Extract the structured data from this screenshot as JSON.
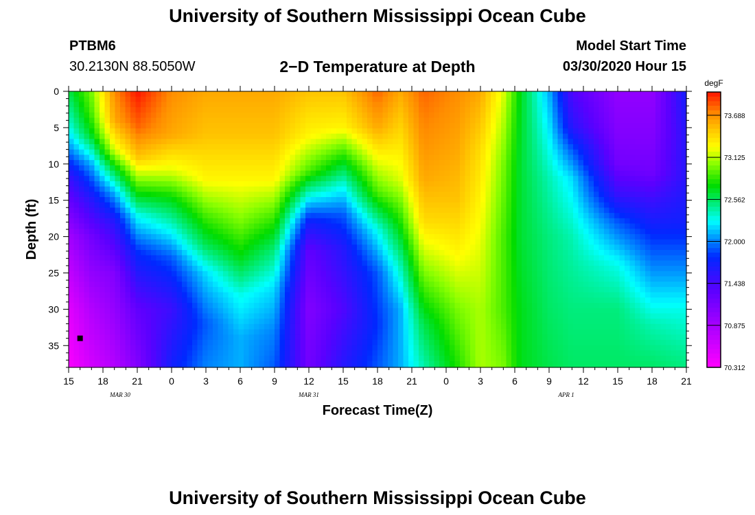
{
  "page": {
    "title": "University of Southern Mississippi Ocean Cube",
    "footer_title": "University of Southern Mississippi Ocean Cube",
    "station_id": "PTBM6",
    "station_coords": "30.2130N 88.5050W",
    "plot_title": "2−D Temperature at Depth",
    "model_start_label": "Model Start Time",
    "model_start_value": "03/30/2020 Hour 15"
  },
  "chart_data": {
    "type": "heatmap",
    "title": "2−D Temperature at Depth",
    "xlabel": "Forecast Time(Z)",
    "ylabel": "Depth (ft)",
    "x_range_hours": [
      0,
      54
    ],
    "ylim": [
      0,
      38
    ],
    "y_inverted": true,
    "y_ticks": [
      0,
      5,
      10,
      15,
      20,
      25,
      30,
      35
    ],
    "x_ticks": [
      {
        "h": 0,
        "label": "15"
      },
      {
        "h": 3,
        "label": "18"
      },
      {
        "h": 6,
        "label": "21"
      },
      {
        "h": 9,
        "label": "0"
      },
      {
        "h": 12,
        "label": "3"
      },
      {
        "h": 15,
        "label": "6"
      },
      {
        "h": 18,
        "label": "9"
      },
      {
        "h": 21,
        "label": "12"
      },
      {
        "h": 24,
        "label": "15"
      },
      {
        "h": 27,
        "label": "18"
      },
      {
        "h": 30,
        "label": "21"
      },
      {
        "h": 33,
        "label": "0"
      },
      {
        "h": 36,
        "label": "3"
      },
      {
        "h": 39,
        "label": "6"
      },
      {
        "h": 42,
        "label": "9"
      },
      {
        "h": 45,
        "label": "12"
      },
      {
        "h": 48,
        "label": "15"
      },
      {
        "h": 51,
        "label": "18"
      },
      {
        "h": 54,
        "label": "21"
      }
    ],
    "date_labels": [
      {
        "h": 4.5,
        "label": "MAR 30"
      },
      {
        "h": 21,
        "label": "MAR 31"
      },
      {
        "h": 43.5,
        "label": "APR 1"
      }
    ],
    "colorbar": {
      "unit": "degF",
      "min": 70.312,
      "max": 74.0,
      "ticks": [
        "73.688",
        "73.125",
        "72.562",
        "72.000",
        "71.438",
        "70.875",
        "70.312"
      ],
      "tick_values": [
        73.688,
        73.125,
        72.562,
        72.0,
        71.438,
        70.875,
        70.312
      ]
    },
    "marker": {
      "h": 1,
      "depth": 34
    },
    "grid": false,
    "temperature_field": {
      "units": "degF",
      "description": "Temperature (degF) versus forecast hour and depth (ft)",
      "profiles": [
        {
          "h": 0,
          "depths": [
            0,
            5,
            8,
            12,
            20,
            30,
            38
          ],
          "temps": [
            72.6,
            72.3,
            72.0,
            71.5,
            70.9,
            70.5,
            70.35
          ]
        },
        {
          "h": 2,
          "depths": [
            0,
            3,
            6,
            10,
            15,
            20,
            30,
            38
          ],
          "temps": [
            73.0,
            72.9,
            72.7,
            72.1,
            71.6,
            71.2,
            70.8,
            70.6
          ]
        },
        {
          "h": 4,
          "depths": [
            0,
            4,
            8,
            11,
            14,
            18,
            25,
            38
          ],
          "temps": [
            73.7,
            73.6,
            73.2,
            72.6,
            72.1,
            71.6,
            71.1,
            70.8
          ]
        },
        {
          "h": 6,
          "depths": [
            0,
            5,
            9,
            13,
            17,
            22,
            30,
            38
          ],
          "temps": [
            74.0,
            73.8,
            73.5,
            72.9,
            72.3,
            71.8,
            71.3,
            71.1
          ]
        },
        {
          "h": 9,
          "depths": [
            0,
            6,
            11,
            15,
            19,
            23,
            30,
            38
          ],
          "temps": [
            73.7,
            73.6,
            73.2,
            72.7,
            72.3,
            71.9,
            71.5,
            71.7
          ]
        },
        {
          "h": 12,
          "depths": [
            0,
            6,
            12,
            17,
            21,
            25,
            32,
            38
          ],
          "temps": [
            73.6,
            73.5,
            73.3,
            72.9,
            72.6,
            72.2,
            71.9,
            72.0
          ]
        },
        {
          "h": 15,
          "depths": [
            0,
            6,
            12,
            18,
            23,
            28,
            34,
            38
          ],
          "temps": [
            73.6,
            73.5,
            73.3,
            73.0,
            72.7,
            72.3,
            72.1,
            72.1
          ]
        },
        {
          "h": 18,
          "depths": [
            0,
            6,
            12,
            17,
            22,
            27,
            33,
            38
          ],
          "temps": [
            73.6,
            73.5,
            73.3,
            72.9,
            72.5,
            72.2,
            72.0,
            71.9
          ]
        },
        {
          "h": 21,
          "depths": [
            0,
            6,
            11,
            15,
            18,
            22,
            30,
            38
          ],
          "temps": [
            73.5,
            73.3,
            72.9,
            72.2,
            71.7,
            71.3,
            71.1,
            71.2
          ]
        },
        {
          "h": 24,
          "depths": [
            0,
            5,
            9,
            13,
            17,
            22,
            30,
            38
          ],
          "temps": [
            73.5,
            73.3,
            72.8,
            72.3,
            71.9,
            71.6,
            71.4,
            71.6
          ]
        },
        {
          "h": 27,
          "depths": [
            0,
            5,
            10,
            14,
            19,
            25,
            32,
            38
          ],
          "temps": [
            73.8,
            73.6,
            73.2,
            72.9,
            72.3,
            71.9,
            71.8,
            71.9
          ]
        },
        {
          "h": 29,
          "depths": [
            0,
            6,
            12,
            18,
            24,
            30,
            38
          ],
          "temps": [
            73.6,
            73.4,
            73.2,
            72.8,
            72.4,
            72.1,
            72.1
          ]
        },
        {
          "h": 31,
          "depths": [
            0,
            6,
            12,
            18,
            25,
            32,
            38
          ],
          "temps": [
            73.8,
            73.7,
            73.6,
            73.4,
            73.0,
            72.6,
            72.4
          ]
        },
        {
          "h": 34,
          "depths": [
            0,
            8,
            15,
            22,
            30,
            38
          ],
          "temps": [
            73.7,
            73.6,
            73.5,
            73.3,
            73.0,
            72.8
          ]
        },
        {
          "h": 36,
          "depths": [
            0,
            8,
            15,
            22,
            30,
            38
          ],
          "temps": [
            73.6,
            73.4,
            73.3,
            73.2,
            73.1,
            73.1
          ]
        },
        {
          "h": 38,
          "depths": [
            0,
            10,
            20,
            30,
            38
          ],
          "temps": [
            73.2,
            73.0,
            72.9,
            72.9,
            73.0
          ]
        },
        {
          "h": 39.5,
          "depths": [
            0,
            10,
            20,
            30,
            38
          ],
          "temps": [
            72.7,
            72.65,
            72.65,
            72.7,
            72.7
          ]
        },
        {
          "h": 42,
          "depths": [
            0,
            4,
            8,
            12,
            20,
            30,
            38
          ],
          "temps": [
            72.1,
            72.2,
            72.3,
            72.4,
            72.5,
            72.55,
            72.6
          ]
        },
        {
          "h": 44,
          "depths": [
            0,
            5,
            8,
            12,
            20,
            30,
            38
          ],
          "temps": [
            71.4,
            71.6,
            71.9,
            72.2,
            72.4,
            72.5,
            72.55
          ]
        },
        {
          "h": 48,
          "depths": [
            0,
            6,
            10,
            14,
            18,
            24,
            30,
            38
          ],
          "temps": [
            71.0,
            71.1,
            71.2,
            71.5,
            71.9,
            72.3,
            72.5,
            72.55
          ]
        },
        {
          "h": 51,
          "depths": [
            0,
            6,
            11,
            15,
            20,
            26,
            32,
            38
          ],
          "temps": [
            71.0,
            71.1,
            71.2,
            71.5,
            71.8,
            72.1,
            72.4,
            72.55
          ]
        },
        {
          "h": 54,
          "depths": [
            0,
            6,
            12,
            18,
            24,
            30,
            38
          ],
          "temps": [
            71.7,
            71.6,
            71.6,
            71.7,
            72.0,
            72.3,
            72.5
          ]
        }
      ]
    }
  }
}
